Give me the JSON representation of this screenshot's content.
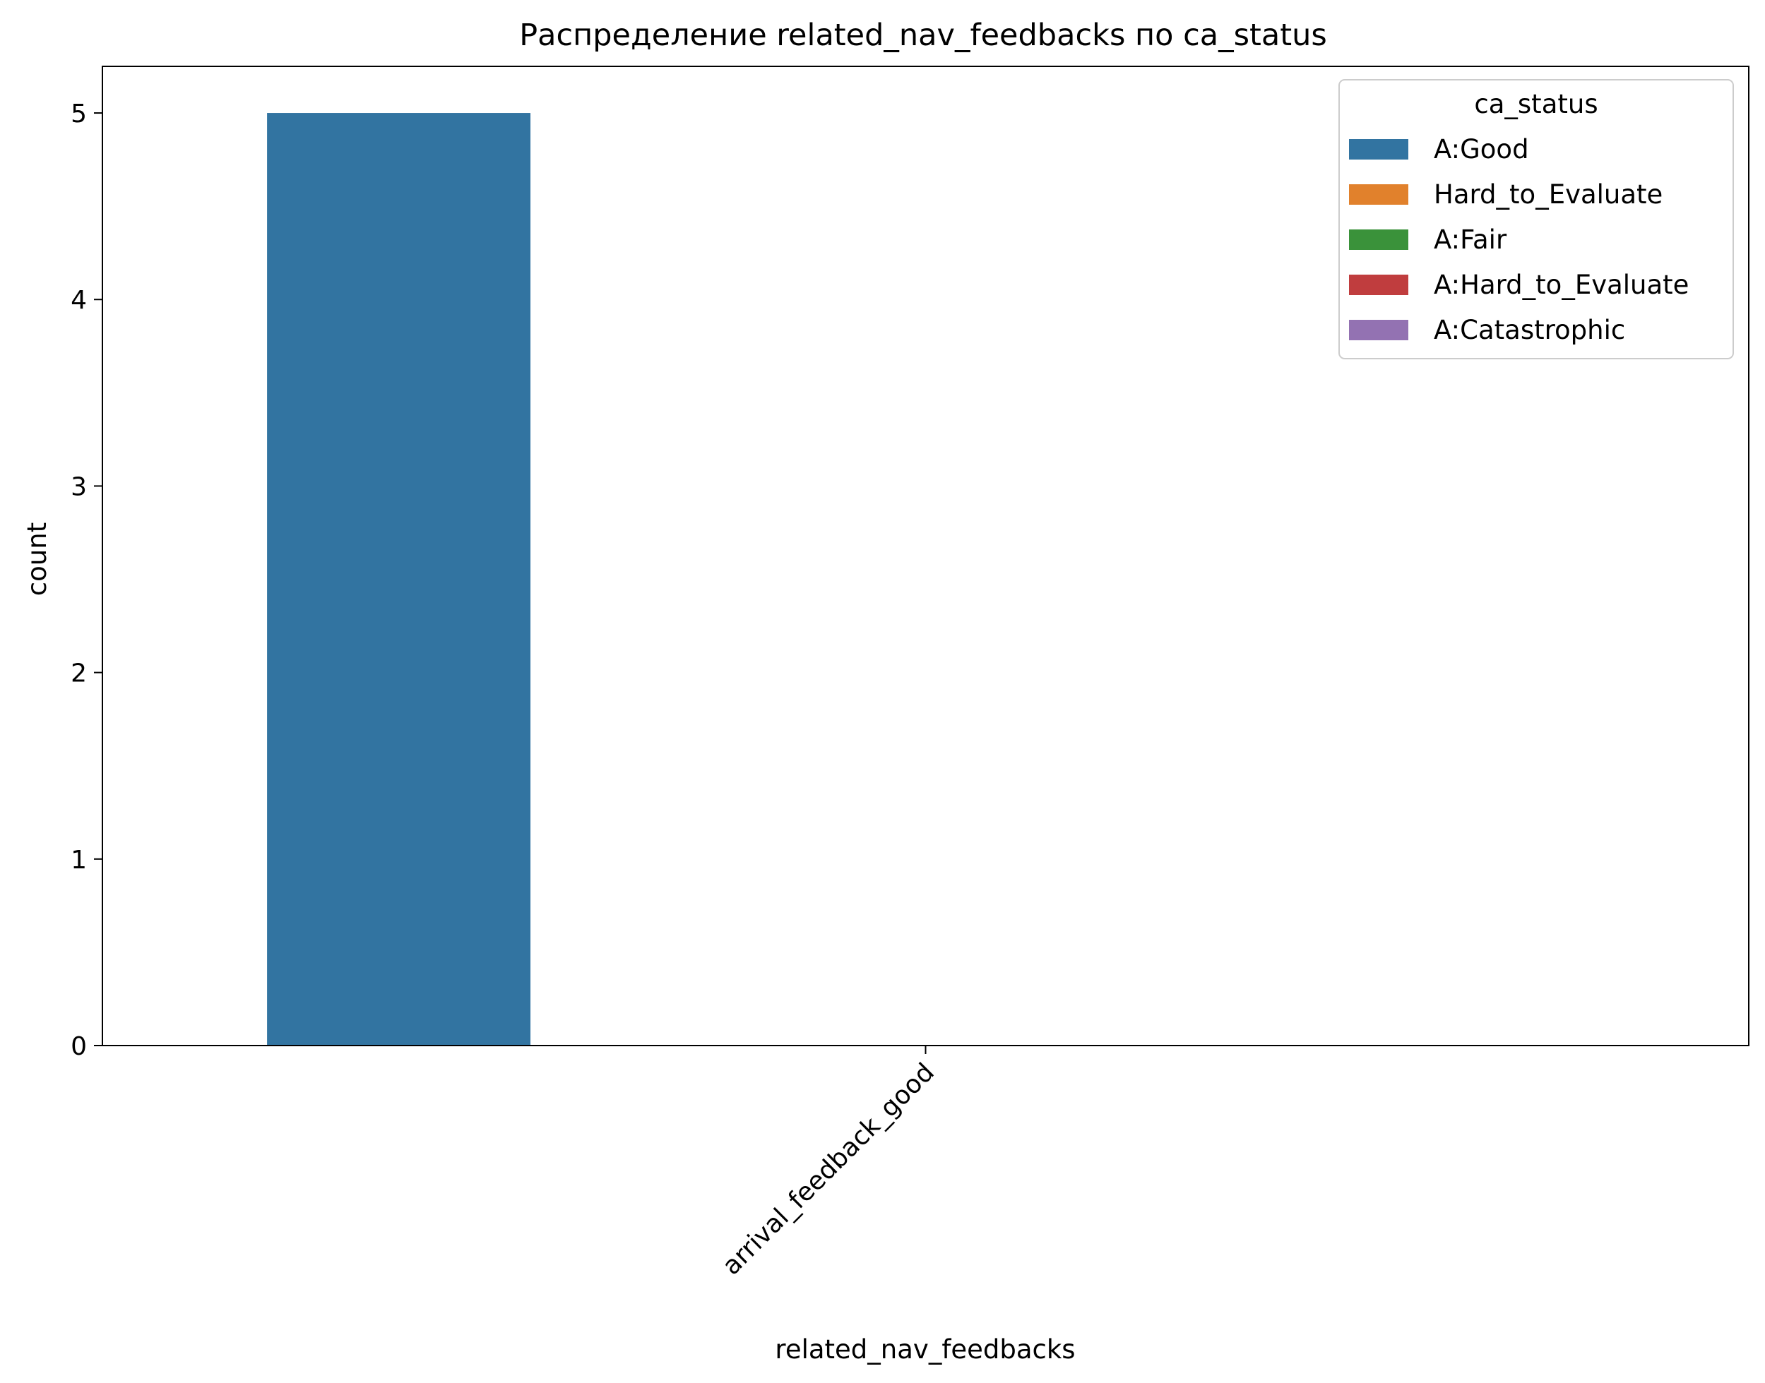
{
  "chart_data": {
    "type": "bar",
    "title": "Распределение related_nav_feedbacks по ca_status",
    "xlabel": "related_nav_feedbacks",
    "ylabel": "count",
    "categories": [
      "arrival_feedback_good"
    ],
    "series": [
      {
        "name": "A:Good",
        "color": "#3274a1",
        "values": [
          5
        ]
      },
      {
        "name": "Hard_to_Evaluate",
        "color": "#e1812c",
        "values": [
          0
        ]
      },
      {
        "name": "A:Fair",
        "color": "#3a923a",
        "values": [
          0
        ]
      },
      {
        "name": "A:Hard_to_Evaluate",
        "color": "#c03d3e",
        "values": [
          0
        ]
      },
      {
        "name": "A:Catastrophic",
        "color": "#9372b2",
        "values": [
          0
        ]
      }
    ],
    "yticks": [
      0,
      1,
      2,
      3,
      4,
      5
    ],
    "ylim": [
      0,
      5.25
    ],
    "grid": false,
    "legend": {
      "title": "ca_status",
      "placement": "top-right"
    }
  }
}
